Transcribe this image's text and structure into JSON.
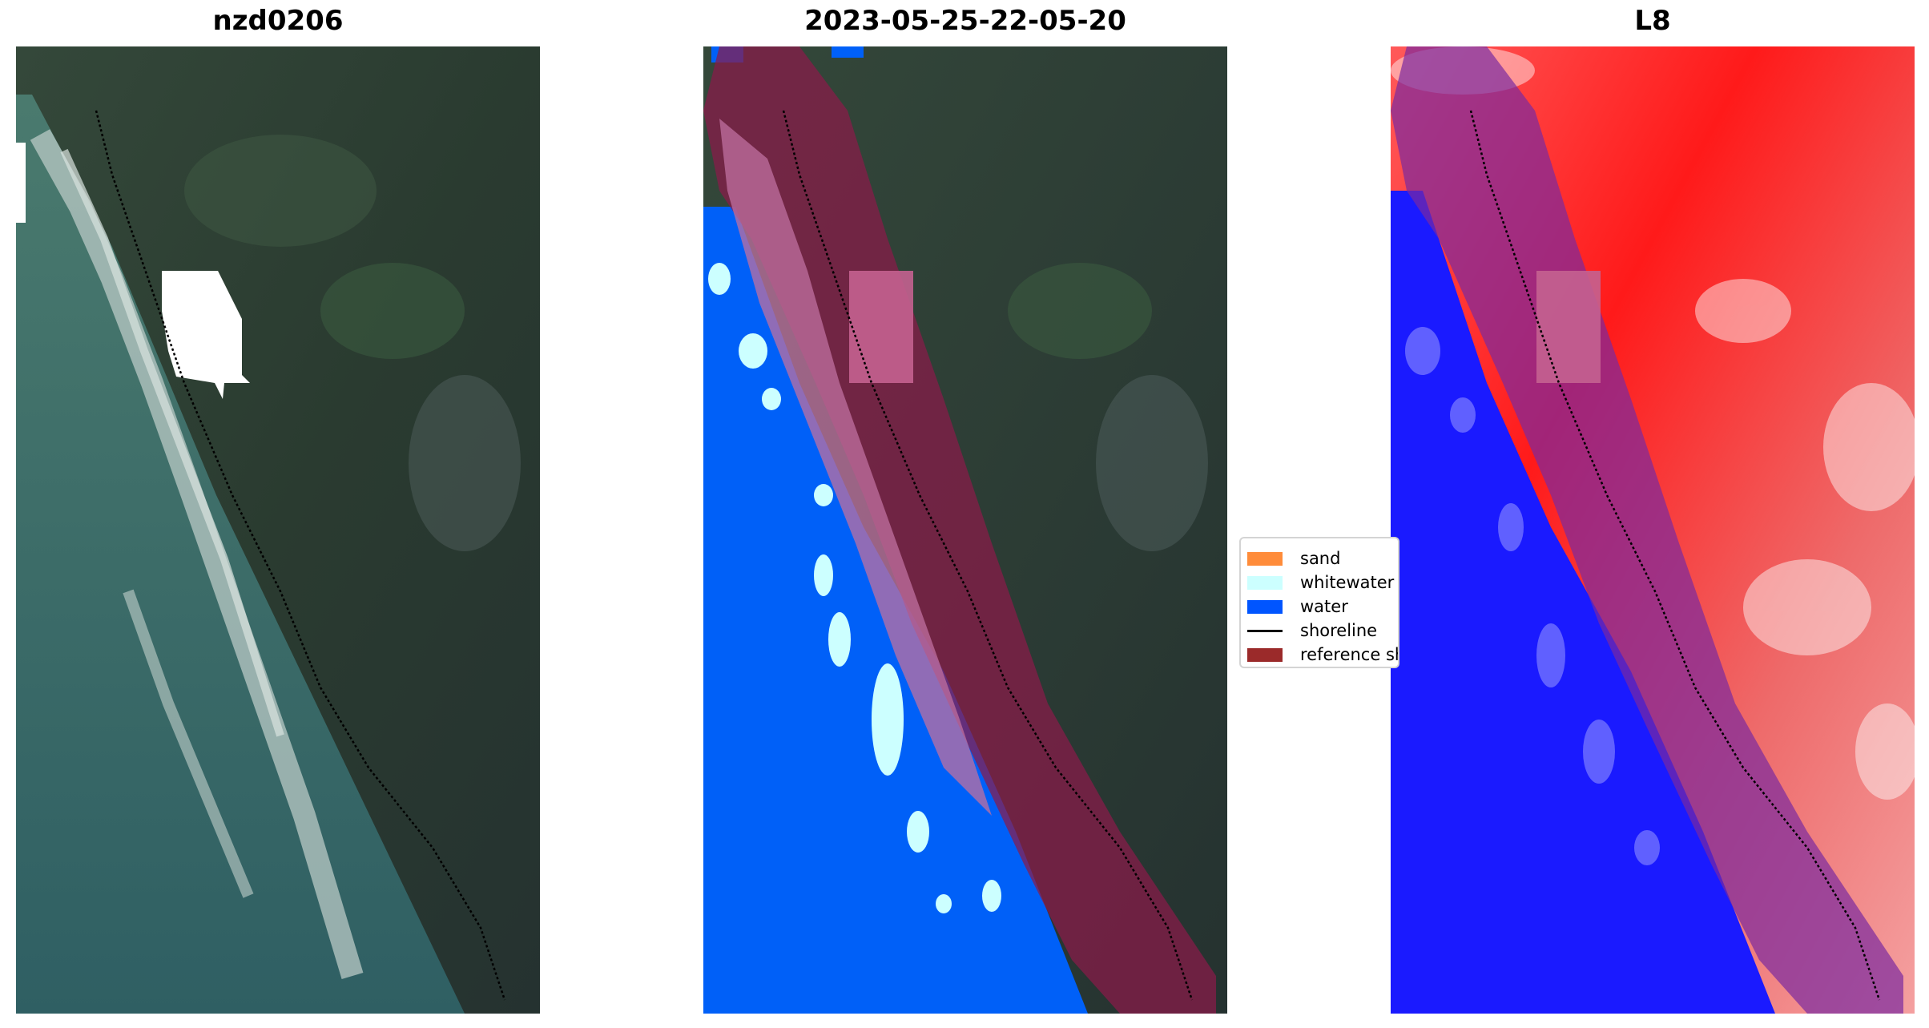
{
  "panels": [
    {
      "title": "nzd0206"
    },
    {
      "title": "2023-05-25-22-05-20"
    },
    {
      "title": "L8"
    }
  ],
  "legend": {
    "items": [
      {
        "label": "sand",
        "color": "#ff8c3a",
        "kind": "patch"
      },
      {
        "label": "whitewater",
        "color": "#ccffff",
        "kind": "patch"
      },
      {
        "label": "water",
        "color": "#0055ff",
        "kind": "patch"
      },
      {
        "label": "shoreline",
        "color": "#000000",
        "kind": "line"
      },
      {
        "label": "reference shoreline buffer",
        "color": "#9b2a2a",
        "kind": "patch"
      }
    ]
  },
  "colors": {
    "land_dark": "#2d3b2f",
    "ocean": "#3d6a66",
    "water_class": "#0060f8",
    "buffer_overlay": "#8a1a4a",
    "index_positive": "#ff2a2a",
    "index_negative": "#1a1aff"
  }
}
